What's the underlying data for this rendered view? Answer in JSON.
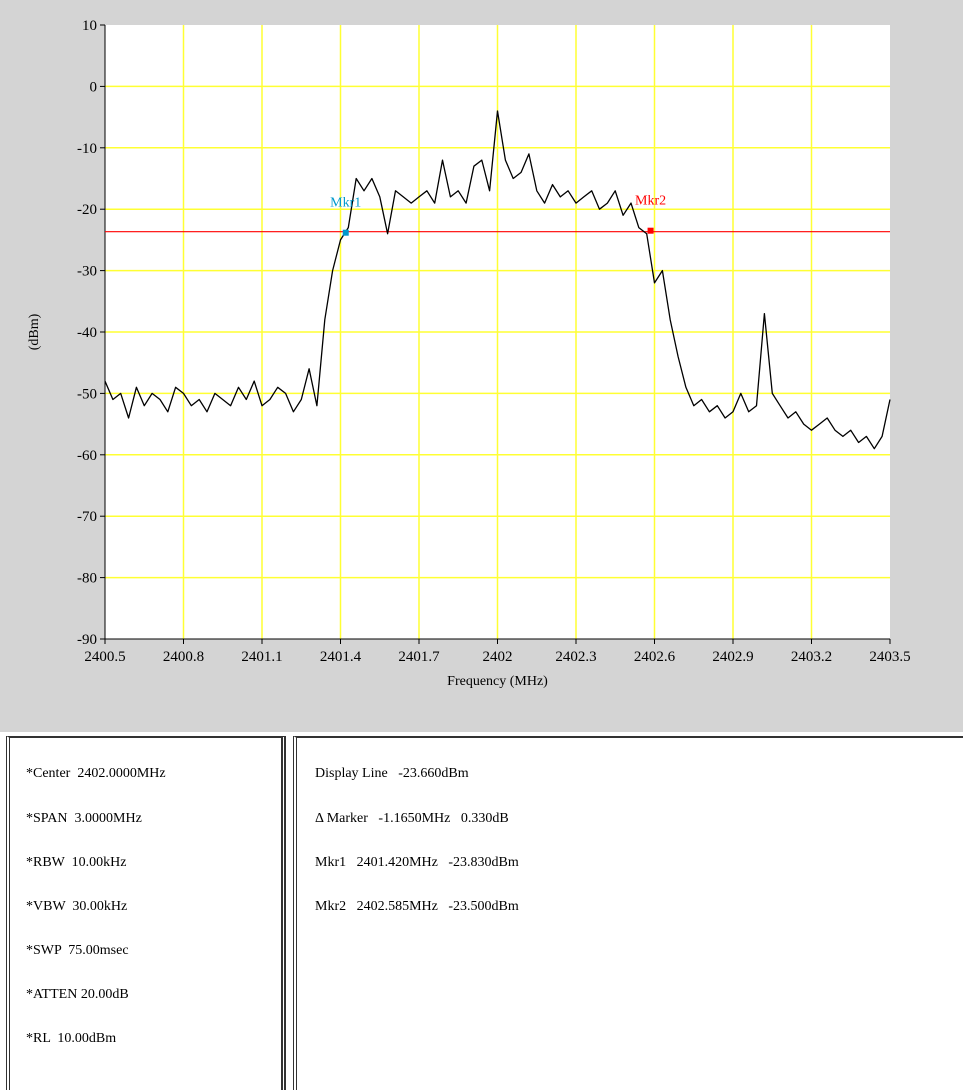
{
  "chart_data": {
    "type": "line",
    "title": "",
    "xlabel": "Frequency (MHz)",
    "ylabel": "(dBm)",
    "xlim": [
      2400.5,
      2403.5
    ],
    "ylim": [
      -90,
      10
    ],
    "x_ticks": [
      "2400.5",
      "2400.8",
      "2401.1",
      "2401.4",
      "2401.7",
      "2402",
      "2402.3",
      "2402.6",
      "2402.9",
      "2403.2",
      "2403.5"
    ],
    "y_ticks": [
      "10",
      "0",
      "-10",
      "-20",
      "-30",
      "-40",
      "-50",
      "-60",
      "-70",
      "-80",
      "-90"
    ],
    "grid": true,
    "grid_color": "#ffff33",
    "plot_background": "#ffffff",
    "trace_color": "#000000",
    "series": [
      {
        "x": [
          2400.5,
          2400.53,
          2400.56,
          2400.59,
          2400.62,
          2400.65,
          2400.68,
          2400.71,
          2400.74,
          2400.77,
          2400.8,
          2400.83,
          2400.86,
          2400.89,
          2400.92,
          2400.95,
          2400.98,
          2401.01,
          2401.04,
          2401.07,
          2401.1,
          2401.13,
          2401.16,
          2401.19,
          2401.22,
          2401.25,
          2401.28,
          2401.31,
          2401.34,
          2401.37,
          2401.4,
          2401.43,
          2401.46,
          2401.49,
          2401.52,
          2401.55,
          2401.58,
          2401.61,
          2401.64,
          2401.67,
          2401.7,
          2401.73,
          2401.76,
          2401.79,
          2401.82,
          2401.85,
          2401.88,
          2401.91,
          2401.94,
          2401.97,
          2402.0,
          2402.03,
          2402.06,
          2402.09,
          2402.12,
          2402.15,
          2402.18,
          2402.21,
          2402.24,
          2402.27,
          2402.3,
          2402.33,
          2402.36,
          2402.39,
          2402.42,
          2402.45,
          2402.48,
          2402.51,
          2402.54,
          2402.57,
          2402.6,
          2402.63,
          2402.66,
          2402.69,
          2402.72,
          2402.75,
          2402.78,
          2402.81,
          2402.84,
          2402.87,
          2402.9,
          2402.93,
          2402.96,
          2402.99,
          2403.02,
          2403.05,
          2403.08,
          2403.11,
          2403.14,
          2403.17,
          2403.2,
          2403.23,
          2403.26,
          2403.29,
          2403.32,
          2403.35,
          2403.38,
          2403.41,
          2403.44,
          2403.47,
          2403.5
        ],
        "values": [
          -48,
          -51,
          -50,
          -54,
          -49,
          -52,
          -50,
          -51,
          -53,
          -49,
          -50,
          -52,
          -51,
          -53,
          -50,
          -51,
          -52,
          -49,
          -51,
          -48,
          -52,
          -51,
          -49,
          -50,
          -53,
          -51,
          -46,
          -52,
          -38,
          -30,
          -25,
          -23,
          -15,
          -17,
          -15,
          -18,
          -24,
          -17,
          -18,
          -19,
          -18,
          -17,
          -19,
          -12,
          -18,
          -17,
          -19,
          -13,
          -12,
          -17,
          -4,
          -12,
          -15,
          -14,
          -11,
          -17,
          -19,
          -16,
          -18,
          -17,
          -19,
          -18,
          -17,
          -20,
          -19,
          -17,
          -21,
          -19,
          -23,
          -24,
          -32,
          -30,
          -38,
          -44,
          -49,
          -52,
          -51,
          -53,
          -52,
          -54,
          -53,
          -50,
          -53,
          -52,
          -37,
          -50,
          -52,
          -54,
          -53,
          -55,
          -56,
          -55,
          -54,
          -56,
          -57,
          -56,
          -58,
          -57,
          -59,
          -57,
          -51
        ]
      }
    ],
    "display_line": -23.66,
    "display_line_color": "#ff0000",
    "markers": [
      {
        "label": "Mkr1",
        "x": 2401.42,
        "y": -23.83,
        "color": "#0099cc"
      },
      {
        "label": "Mkr2",
        "x": 2402.585,
        "y": -23.5,
        "color": "#ff0000"
      }
    ]
  },
  "settings": [
    "*Center  2402.0000MHz",
    "*SPAN  3.0000MHz",
    "*RBW  10.00kHz",
    "*VBW  30.00kHz",
    "*SWP  75.00msec",
    "*ATTEN 20.00dB",
    "*RL  10.00dBm"
  ],
  "readouts": [
    "Display Line   -23.660dBm",
    "Δ Marker   -1.1650MHz   0.330dB",
    "Mkr1   2401.420MHz   -23.830dBm",
    "Mkr2   2402.585MHz   -23.500dBm"
  ]
}
